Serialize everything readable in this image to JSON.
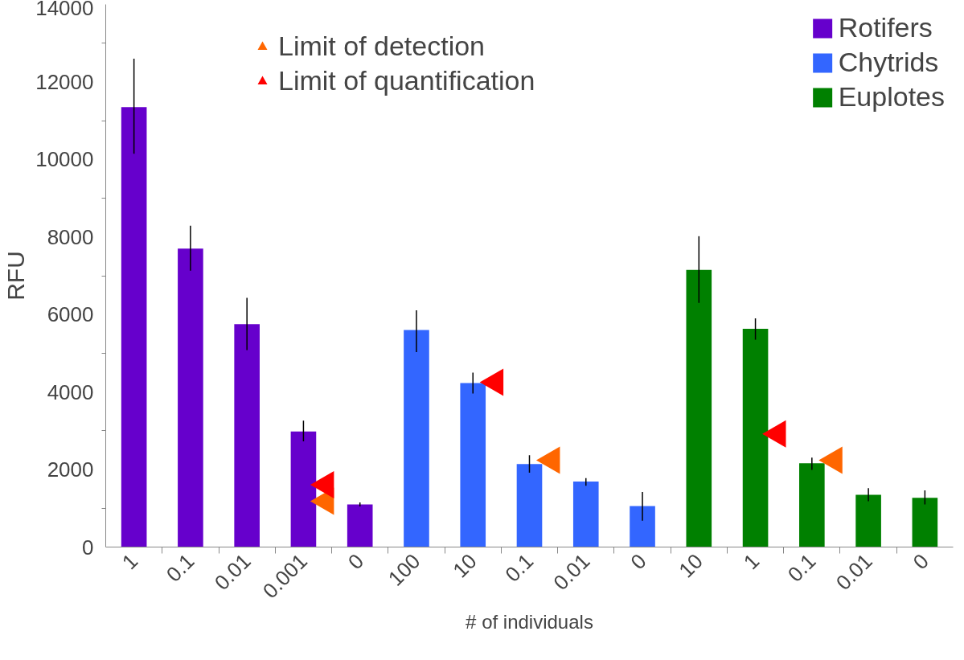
{
  "chart_data": {
    "type": "bar",
    "xlabel": "# of individuals",
    "ylabel": "RFU",
    "categories": [
      "1",
      "0.1",
      "0.01",
      "0.001",
      "0",
      "100",
      "10",
      "0.1",
      "0.01",
      "0",
      "10",
      "1",
      "0.1",
      "0.01",
      "0"
    ],
    "series": [
      {
        "name": "Rotifers",
        "color": "#6600cc",
        "values": [
          11350,
          7700,
          5750,
          2980,
          1100,
          null,
          null,
          null,
          null,
          null,
          null,
          null,
          null,
          null,
          null
        ],
        "errors": [
          [
            10150,
            12600
          ],
          [
            7130,
            8290
          ],
          [
            5080,
            6430
          ],
          [
            2730,
            3260
          ],
          [
            1050,
            1150
          ],
          null,
          null,
          null,
          null,
          null,
          null,
          null,
          null,
          null,
          null
        ]
      },
      {
        "name": "Chytrids",
        "color": "#3366ff",
        "values": [
          null,
          null,
          null,
          null,
          null,
          5600,
          4230,
          2140,
          1690,
          1060,
          null,
          null,
          null,
          null,
          null
        ],
        "errors": [
          null,
          null,
          null,
          null,
          null,
          [
            5030,
            6110
          ],
          [
            3960,
            4500
          ],
          [
            1920,
            2370
          ],
          [
            1580,
            1780
          ],
          [
            680,
            1420
          ],
          null,
          null,
          null,
          null,
          null
        ]
      },
      {
        "name": "Euplotes",
        "color": "#008000",
        "values": [
          null,
          null,
          null,
          null,
          null,
          null,
          null,
          null,
          null,
          null,
          7150,
          5630,
          2160,
          1350,
          1270
        ],
        "errors": [
          null,
          null,
          null,
          null,
          null,
          null,
          null,
          null,
          null,
          null,
          [
            6300,
            8020
          ],
          [
            5350,
            5900
          ],
          [
            1990,
            2310
          ],
          [
            1180,
            1520
          ],
          [
            1100,
            1460
          ]
        ]
      },
      {
        "name": "Limit of detection",
        "type": "scatter",
        "marker": "triangle",
        "color": "#ff6600",
        "values": [
          null,
          null,
          null,
          1180,
          null,
          null,
          null,
          2240,
          null,
          null,
          null,
          null,
          2240,
          null,
          null
        ]
      },
      {
        "name": "Limit of quantification",
        "type": "scatter",
        "marker": "triangle",
        "color": "#ff0000",
        "values": [
          null,
          null,
          null,
          1610,
          null,
          null,
          4250,
          null,
          null,
          null,
          null,
          2920,
          null,
          null,
          null
        ]
      }
    ],
    "ylim": [
      0,
      14000
    ],
    "yticks": [
      0,
      2000,
      4000,
      6000,
      8000,
      10000,
      12000,
      14000
    ],
    "grid": false,
    "legend": "top right"
  }
}
